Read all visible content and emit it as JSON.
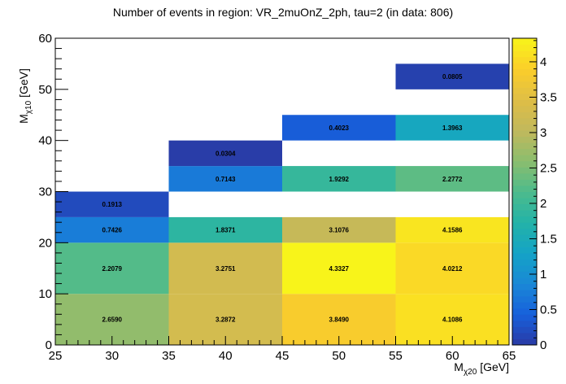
{
  "chart_data": {
    "type": "heatmap",
    "title": "Number of events in region: VR_2muOnZ_2ph, tau=2 (in data: 806)",
    "xlabel": {
      "main": "M",
      "sub": "χ20",
      "unit": " [GeV]"
    },
    "ylabel": {
      "main": "M",
      "sub": "χ10",
      "unit": " [GeV]"
    },
    "xlim": [
      25,
      65
    ],
    "ylim": [
      0,
      60
    ],
    "x_ticks": [
      "25",
      "30",
      "35",
      "40",
      "45",
      "50",
      "55",
      "60",
      "65"
    ],
    "y_ticks": [
      "0",
      "10",
      "20",
      "30",
      "40",
      "50",
      "60"
    ],
    "zlim": [
      0,
      4.3327
    ],
    "z_ticks": [
      "0",
      "0.5",
      "1",
      "1.5",
      "2",
      "2.5",
      "3",
      "3.5",
      "4"
    ],
    "cells": [
      {
        "x": [
          25,
          35
        ],
        "y": [
          0,
          10
        ],
        "value": 2.659,
        "label": "2.6590"
      },
      {
        "x": [
          25,
          35
        ],
        "y": [
          10,
          20
        ],
        "value": 2.2079,
        "label": "2.2079"
      },
      {
        "x": [
          25,
          35
        ],
        "y": [
          20,
          25
        ],
        "value": 0.7426,
        "label": "0.7426"
      },
      {
        "x": [
          25,
          35
        ],
        "y": [
          25,
          30
        ],
        "value": 0.1913,
        "label": "0.1913"
      },
      {
        "x": [
          35,
          45
        ],
        "y": [
          0,
          10
        ],
        "value": 3.2872,
        "label": "3.2872"
      },
      {
        "x": [
          35,
          45
        ],
        "y": [
          10,
          20
        ],
        "value": 3.2751,
        "label": "3.2751"
      },
      {
        "x": [
          35,
          45
        ],
        "y": [
          20,
          25
        ],
        "value": 1.8371,
        "label": "1.8371"
      },
      {
        "x": [
          35,
          45
        ],
        "y": [
          30,
          35
        ],
        "value": 0.7143,
        "label": "0.7143"
      },
      {
        "x": [
          35,
          45
        ],
        "y": [
          35,
          40
        ],
        "value": 0.0304,
        "label": "0.0304"
      },
      {
        "x": [
          45,
          55
        ],
        "y": [
          0,
          10
        ],
        "value": 3.849,
        "label": "3.8490"
      },
      {
        "x": [
          45,
          55
        ],
        "y": [
          10,
          20
        ],
        "value": 4.3327,
        "label": "4.3327"
      },
      {
        "x": [
          45,
          55
        ],
        "y": [
          20,
          25
        ],
        "value": 3.1076,
        "label": "3.1076"
      },
      {
        "x": [
          45,
          55
        ],
        "y": [
          30,
          35
        ],
        "value": 1.9292,
        "label": "1.9292"
      },
      {
        "x": [
          45,
          55
        ],
        "y": [
          40,
          45
        ],
        "value": 0.4023,
        "label": "0.4023"
      },
      {
        "x": [
          55,
          65
        ],
        "y": [
          0,
          10
        ],
        "value": 4.1086,
        "label": "4.1086"
      },
      {
        "x": [
          55,
          65
        ],
        "y": [
          10,
          20
        ],
        "value": 4.0212,
        "label": "4.0212"
      },
      {
        "x": [
          55,
          65
        ],
        "y": [
          20,
          25
        ],
        "value": 4.1586,
        "label": "4.1586"
      },
      {
        "x": [
          55,
          65
        ],
        "y": [
          30,
          35
        ],
        "value": 2.2772,
        "label": "2.2772"
      },
      {
        "x": [
          55,
          65
        ],
        "y": [
          40,
          45
        ],
        "value": 1.3963,
        "label": "1.3963"
      },
      {
        "x": [
          55,
          65
        ],
        "y": [
          50,
          55
        ],
        "value": 0.0805,
        "label": "0.0805"
      }
    ],
    "palette": [
      "#2a3aa4",
      "#1760dc",
      "#1a88d6",
      "#14a3c6",
      "#23b3a8",
      "#4dbb8c",
      "#8bbd6e",
      "#c1b85c",
      "#dfbe46",
      "#fbce2a",
      "#f8f41a"
    ],
    "grid": false
  }
}
